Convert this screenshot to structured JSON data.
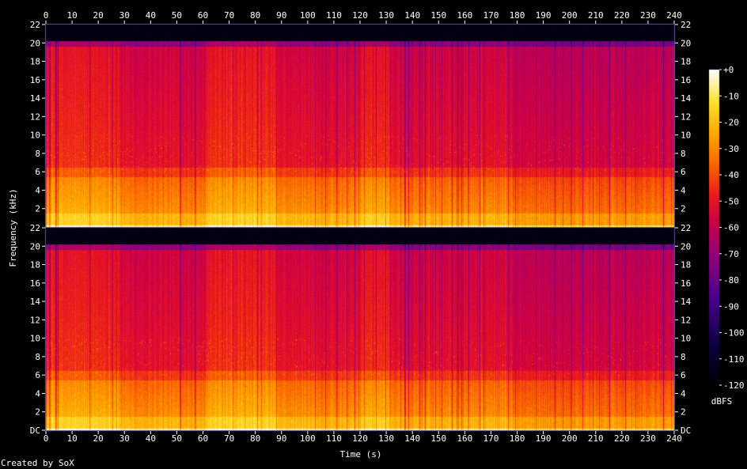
{
  "chart_data": {
    "type": "heatmap",
    "title": "",
    "xlabel": "Time (s)",
    "ylabel": "Frequency (kHz)",
    "xlim": [
      0,
      240
    ],
    "x_ticks": [
      "0",
      "10",
      "20",
      "30",
      "40",
      "50",
      "60",
      "70",
      "80",
      "90",
      "100",
      "110",
      "120",
      "130",
      "140",
      "150",
      "160",
      "170",
      "180",
      "190",
      "200",
      "210",
      "220",
      "230",
      "240"
    ],
    "channels": [
      {
        "ylim": [
          0,
          22
        ],
        "y_ticks": [
          "22",
          "20",
          "18",
          "16",
          "14",
          "12",
          "10",
          "8",
          "6",
          "4",
          "2"
        ],
        "y_ticks_right": [
          "22",
          "20",
          "18",
          "16",
          "14",
          "12",
          "10",
          "8",
          "6",
          "4",
          "2"
        ],
        "cutoff_khz": 20.2
      },
      {
        "ylim": [
          0,
          22
        ],
        "y_ticks": [
          "22",
          "20",
          "18",
          "16",
          "14",
          "12",
          "10",
          "8",
          "6",
          "4",
          "2",
          "DC"
        ],
        "y_ticks_right": [
          "22",
          "20",
          "18",
          "16",
          "14",
          "12",
          "10",
          "8",
          "6",
          "4",
          "2",
          "DC"
        ],
        "cutoff_khz": 20.2
      }
    ],
    "colorbar": {
      "label": "dBFS",
      "range": [
        -120,
        0
      ],
      "ticks": [
        "+0",
        "-10",
        "-20",
        "-30",
        "-40",
        "-50",
        "-60",
        "-70",
        "-80",
        "-90",
        "-100",
        "-110",
        "-120"
      ]
    },
    "grid": false
  },
  "footer": {
    "credit": "Created by SoX"
  },
  "colors": {
    "background": "#000000",
    "axis": "#ffffff",
    "frame": "#5a5aa8"
  }
}
